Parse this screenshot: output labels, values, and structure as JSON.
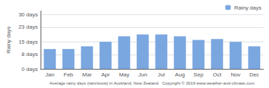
{
  "chart_data": {
    "type": "bar",
    "categories": [
      "Jan",
      "Feb",
      "Mar",
      "Apr",
      "May",
      "Jun",
      "Jul",
      "Aug",
      "Sep",
      "Oct",
      "Nov",
      "Dec"
    ],
    "series": [
      {
        "name": "Rainy days",
        "color": "#7ba7e0",
        "values": [
          11,
          11,
          12.5,
          15,
          18,
          19,
          19,
          18,
          16,
          16.5,
          15,
          12.5
        ]
      }
    ],
    "ylabel": "Rainy days",
    "xlabel": "Average rainy days (rain/snow) in Auckland, New Zealand   Copyright © 2019 www.weather-and-climate.com",
    "ylim": [
      0,
      32
    ],
    "yticks": [
      {
        "value": 0,
        "label": "0 days"
      },
      {
        "value": 8,
        "label": "8 days"
      },
      {
        "value": 15,
        "label": "15 days"
      },
      {
        "value": 23,
        "label": "23 days"
      },
      {
        "value": 30,
        "label": "30 days"
      }
    ],
    "grid": true,
    "legend": "upper right"
  }
}
